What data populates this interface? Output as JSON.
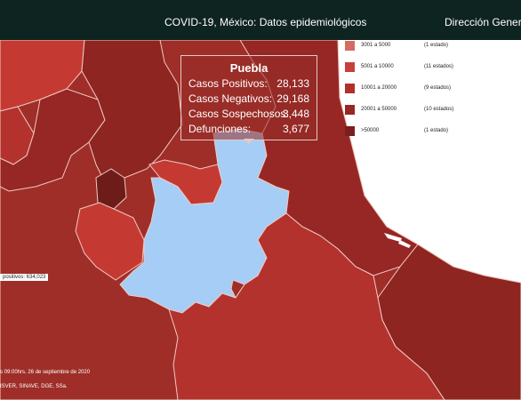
{
  "header": {
    "title": "COVID-19, México: Datos epidemiológicos",
    "org": "Dirección General d"
  },
  "legend": {
    "items": [
      {
        "range": "3001 a   5000",
        "count": "(1 estado)",
        "color": "#d66b63"
      },
      {
        "range": "5001 a  10000",
        "count": "(11 estados)",
        "color": "#c9403a"
      },
      {
        "range": "10001 a   20000",
        "count": "(9 estados)",
        "color": "#b0302b"
      },
      {
        "range": "20001 a   50000",
        "count": "(10 estados)",
        "color": "#962724"
      },
      {
        "range": ">50000",
        "count": "(1 estado)",
        "color": "#7a1f1d"
      }
    ]
  },
  "tooltip": {
    "state": "Puebla",
    "rows": [
      {
        "label": "Casos Positivos:",
        "value": "28,133"
      },
      {
        "label": "Casos Negativos:",
        "value": "29,168"
      },
      {
        "label": "Casos Sospechosos:",
        "value": "3,448"
      },
      {
        "label": "Defunciones:",
        "value": "3,677"
      }
    ]
  },
  "total_positive": "positivos: 634,023",
  "footer": {
    "date": "s 09:00hrs. 26 de septiembre de 2020",
    "source": "ISVER, SINAVE, DGE, SSa."
  },
  "colors": {
    "background": "#ffffff",
    "header_bg": "#0e2420",
    "highlight": "#a6cdf5",
    "border": "#f1c9c3"
  }
}
